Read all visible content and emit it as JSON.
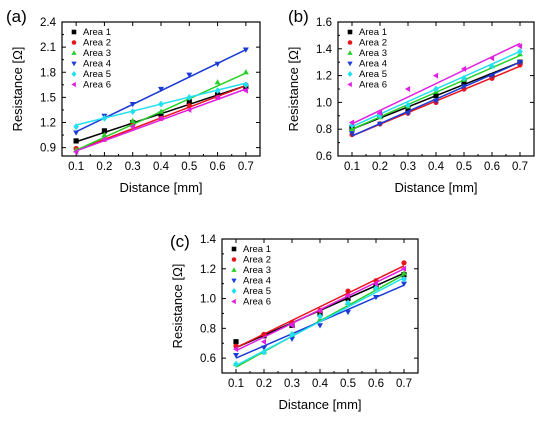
{
  "chart_data": [
    {
      "type": "scatter",
      "panel_label": "(a)",
      "xlabel": "Distance [mm]",
      "ylabel": "Resistance [Ω]",
      "xlim": [
        0.05,
        0.75
      ],
      "ylim": [
        0.8,
        2.4
      ],
      "xticks": [
        "0.1",
        "0.2",
        "0.3",
        "0.4",
        "0.5",
        "0.6",
        "0.7"
      ],
      "yticks": [
        "0.9",
        "1.2",
        "1.5",
        "1.8",
        "2.1",
        "2.4"
      ],
      "x": [
        0.1,
        0.2,
        0.3,
        0.4,
        0.5,
        0.6,
        0.7
      ],
      "legend_position": "top-left",
      "series": [
        {
          "name": "Area 1",
          "color": "#000000",
          "marker": "square",
          "values": [
            0.98,
            1.1,
            1.2,
            1.3,
            1.45,
            1.53,
            1.63
          ],
          "fit": [
            0.97,
            1.64
          ]
        },
        {
          "name": "Area 2",
          "color": "#e8141c",
          "marker": "circle",
          "values": [
            0.89,
            1.0,
            1.17,
            1.25,
            1.4,
            1.5,
            1.65
          ],
          "fit": [
            0.87,
            1.64
          ]
        },
        {
          "name": "Area 3",
          "color": "#26d026",
          "marker": "triangle-up",
          "values": [
            0.87,
            1.05,
            1.22,
            1.33,
            1.5,
            1.68,
            1.8
          ],
          "fit": [
            0.87,
            1.79
          ]
        },
        {
          "name": "Area 4",
          "color": "#1a3bd6",
          "marker": "triangle-down",
          "values": [
            1.08,
            1.28,
            1.42,
            1.6,
            1.77,
            1.9,
            2.07
          ],
          "fit": [
            1.09,
            2.07
          ]
        },
        {
          "name": "Area 5",
          "color": "#22e0f0",
          "marker": "diamond",
          "values": [
            1.15,
            1.25,
            1.33,
            1.42,
            1.5,
            1.58,
            1.65
          ],
          "fit": [
            1.17,
            1.67
          ]
        },
        {
          "name": "Area 6",
          "color": "#e020e0",
          "marker": "triangle-left",
          "values": [
            0.85,
            1.0,
            1.15,
            1.25,
            1.35,
            1.5,
            1.58
          ],
          "fit": [
            0.86,
            1.6
          ]
        }
      ]
    },
    {
      "type": "scatter",
      "panel_label": "(b)",
      "xlabel": "Distance [mm]",
      "ylabel": "Resistance [Ω]",
      "xlim": [
        0.05,
        0.75
      ],
      "ylim": [
        0.6,
        1.6
      ],
      "xticks": [
        "0.1",
        "0.2",
        "0.3",
        "0.4",
        "0.5",
        "0.6",
        "0.7"
      ],
      "yticks": [
        "0.6",
        "0.8",
        "1.0",
        "1.2",
        "1.4",
        "1.6"
      ],
      "x": [
        0.1,
        0.2,
        0.3,
        0.4,
        0.5,
        0.6,
        0.7
      ],
      "legend_position": "top-left",
      "series": [
        {
          "name": "Area 1",
          "color": "#000000",
          "marker": "square",
          "values": [
            0.81,
            0.9,
            0.95,
            1.05,
            1.15,
            1.2,
            1.3
          ],
          "fit": [
            0.8,
            1.3
          ]
        },
        {
          "name": "Area 2",
          "color": "#e8141c",
          "marker": "circle",
          "values": [
            0.76,
            0.84,
            0.92,
            1.0,
            1.1,
            1.18,
            1.28
          ],
          "fit": [
            0.75,
            1.27
          ]
        },
        {
          "name": "Area 3",
          "color": "#26d026",
          "marker": "triangle-up",
          "values": [
            0.8,
            0.89,
            0.97,
            1.08,
            1.17,
            1.27,
            1.36
          ],
          "fit": [
            0.8,
            1.35
          ]
        },
        {
          "name": "Area 4",
          "color": "#1a3bd6",
          "marker": "triangle-down",
          "values": [
            0.77,
            0.84,
            0.92,
            1.01,
            1.12,
            1.2,
            1.3
          ],
          "fit": [
            0.75,
            1.3
          ]
        },
        {
          "name": "Area 5",
          "color": "#22e0f0",
          "marker": "diamond",
          "values": [
            0.83,
            0.9,
            0.98,
            1.1,
            1.18,
            1.27,
            1.38
          ],
          "fit": [
            0.82,
            1.38
          ]
        },
        {
          "name": "Area 6",
          "color": "#e020e0",
          "marker": "triangle-left",
          "values": [
            0.85,
            0.92,
            1.1,
            1.2,
            1.25,
            1.33,
            1.42
          ],
          "fit": [
            0.84,
            1.44
          ]
        }
      ]
    },
    {
      "type": "scatter",
      "panel_label": "(c)",
      "xlabel": "Distance [mm]",
      "ylabel": "Resistance [Ω]",
      "xlim": [
        0.05,
        0.75
      ],
      "ylim": [
        0.5,
        1.4
      ],
      "xticks": [
        "0.1",
        "0.2",
        "0.3",
        "0.4",
        "0.5",
        "0.6",
        "0.7"
      ],
      "yticks": [
        "0.6",
        "0.8",
        "1.0",
        "1.2",
        "1.4"
      ],
      "x": [
        0.1,
        0.2,
        0.3,
        0.4,
        0.5,
        0.6,
        0.7
      ],
      "legend_position": "top-left",
      "series": [
        {
          "name": "Area 1",
          "color": "#000000",
          "marker": "square",
          "values": [
            0.71,
            0.75,
            0.82,
            0.9,
            1.0,
            1.08,
            1.16
          ],
          "fit": [
            0.67,
            1.17
          ]
        },
        {
          "name": "Area 2",
          "color": "#e8141c",
          "marker": "circle",
          "values": [
            0.68,
            0.76,
            0.84,
            0.92,
            1.05,
            1.12,
            1.24
          ],
          "fit": [
            0.67,
            1.22
          ]
        },
        {
          "name": "Area 3",
          "color": "#26d026",
          "marker": "triangle-up",
          "values": [
            0.56,
            0.64,
            0.75,
            0.86,
            0.97,
            1.07,
            1.17
          ],
          "fit": [
            0.54,
            1.16
          ]
        },
        {
          "name": "Area 4",
          "color": "#1a3bd6",
          "marker": "triangle-down",
          "values": [
            0.62,
            0.67,
            0.73,
            0.82,
            0.91,
            1.01,
            1.1
          ],
          "fit": [
            0.6,
            1.09
          ]
        },
        {
          "name": "Area 5",
          "color": "#22e0f0",
          "marker": "diamond",
          "values": [
            0.56,
            0.64,
            0.76,
            0.88,
            0.97,
            1.07,
            1.13
          ],
          "fit": [
            0.55,
            1.14
          ]
        },
        {
          "name": "Area 6",
          "color": "#e020e0",
          "marker": "triangle-left",
          "values": [
            0.66,
            0.71,
            0.82,
            0.92,
            1.02,
            1.1,
            1.2
          ],
          "fit": [
            0.65,
            1.2
          ]
        }
      ]
    }
  ]
}
